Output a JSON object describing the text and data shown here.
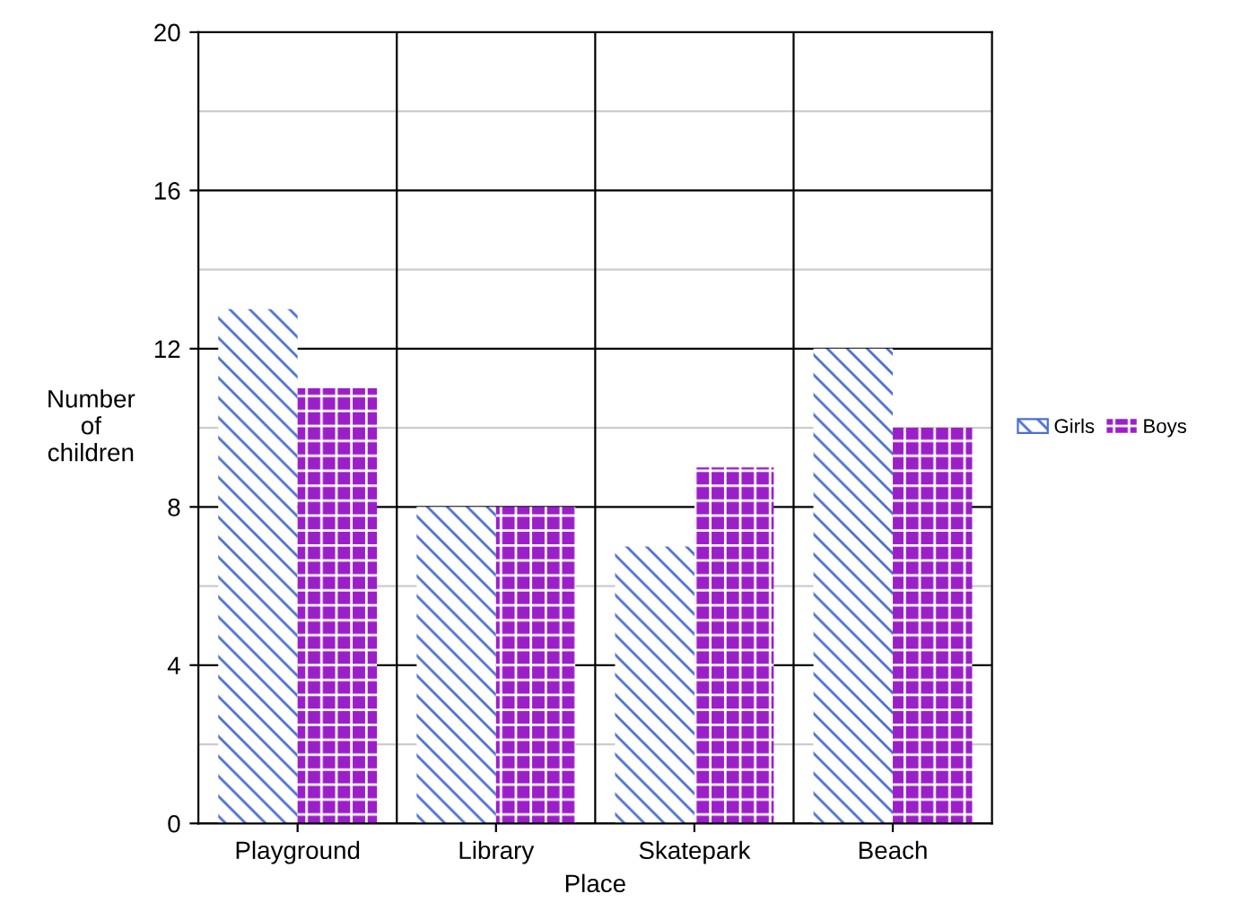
{
  "chart_data": {
    "type": "bar",
    "xlabel": "Place",
    "ylabel": "Number\nof\nchildren",
    "categories": [
      "Playground",
      "Library",
      "Skatepark",
      "Beach"
    ],
    "series": [
      {
        "name": "Girls",
        "color": "#4a6fd0",
        "values": [
          13,
          8,
          7,
          12
        ]
      },
      {
        "name": "Boys",
        "color": "#9b1fc8",
        "values": [
          11,
          8,
          9,
          10
        ]
      }
    ],
    "ylim": [
      0,
      20
    ],
    "yticks": [
      0,
      4,
      8,
      12,
      16,
      20
    ],
    "grid": true,
    "legend": "right"
  }
}
